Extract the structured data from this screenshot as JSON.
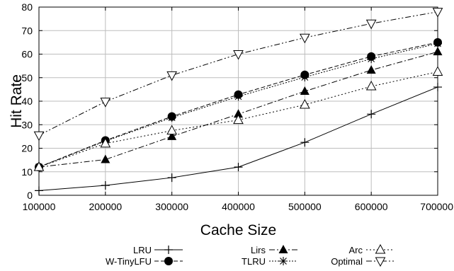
{
  "chart_data": {
    "type": "line",
    "xlabel": "Cache Size",
    "ylabel": "Hit Rate",
    "x": [
      100000,
      200000,
      300000,
      400000,
      500000,
      600000,
      700000
    ],
    "xticks": [
      "100000",
      "200000",
      "300000",
      "400000",
      "500000",
      "600000",
      "700000"
    ],
    "ylim": [
      0,
      80
    ],
    "yticks": [
      "0",
      "10",
      "20",
      "30",
      "40",
      "50",
      "60",
      "70",
      "80"
    ],
    "grid": true,
    "legend_position": "bottom",
    "series": [
      {
        "name": "LRU",
        "marker": "plus",
        "dash": "",
        "values": [
          2,
          4.2,
          7.5,
          12,
          22.5,
          34.5,
          46
        ]
      },
      {
        "name": "W-TinyLFU",
        "marker": "circle",
        "dash": "6,3",
        "values": [
          12,
          23.3,
          33.5,
          42.8,
          51.2,
          59,
          65
        ]
      },
      {
        "name": "Lirs",
        "marker": "triangle-up",
        "dash": "8,3,2,3",
        "values": [
          12,
          15.2,
          25,
          34.5,
          44.2,
          53.2,
          61
        ]
      },
      {
        "name": "TLRU",
        "marker": "asterisk",
        "dash": "2,2",
        "values": [
          12,
          23,
          33,
          42,
          50.2,
          58,
          64.5
        ]
      },
      {
        "name": "Arc",
        "marker": "triangle-up-open",
        "dash": "2,3",
        "values": [
          12,
          22,
          27.5,
          32,
          38.5,
          46.3,
          52.5
        ]
      },
      {
        "name": "Optimal",
        "marker": "triangle-down-open",
        "dash": "8,3,2,3,2,3",
        "values": [
          25.5,
          39.8,
          51,
          60,
          67,
          73,
          78
        ]
      }
    ]
  }
}
